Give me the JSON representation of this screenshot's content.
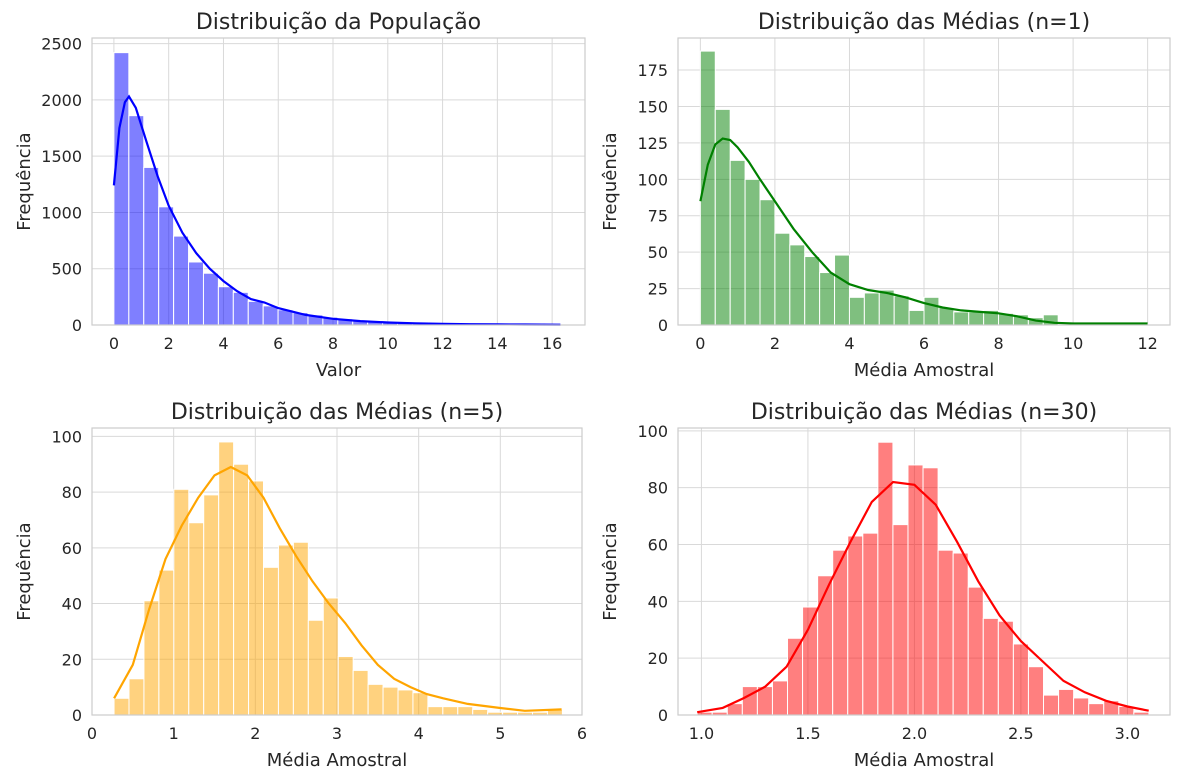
{
  "chart_data": [
    {
      "type": "bar",
      "title": "Distribuição da População",
      "xlabel": "Valor",
      "ylabel": "Frequência",
      "xlim": [
        -0.8,
        17.2
      ],
      "ylim": [
        0,
        2550
      ],
      "xticks": [
        0,
        2,
        4,
        6,
        8,
        10,
        12,
        14,
        16
      ],
      "xtick_labels": [
        "0",
        "2",
        "4",
        "6",
        "8",
        "10",
        "12",
        "14",
        "16"
      ],
      "yticks": [
        0,
        500,
        1000,
        1500,
        2000,
        2500
      ],
      "ytick_labels": [
        "0",
        "500",
        "1000",
        "1500",
        "2000",
        "2500"
      ],
      "grid": true,
      "color": "#0000ff",
      "bin_start": 0.0,
      "bin_width": 0.545,
      "values": [
        2420,
        1860,
        1400,
        1050,
        790,
        560,
        460,
        340,
        290,
        210,
        170,
        135,
        110,
        90,
        70,
        55,
        42,
        32,
        26,
        20,
        16,
        12,
        10,
        8,
        6,
        5,
        4,
        3,
        2,
        2
      ],
      "kde": {
        "x": [
          0,
          0.2,
          0.4,
          0.55,
          0.8,
          1.2,
          1.6,
          2.0,
          2.5,
          3.0,
          3.5,
          4.0,
          4.5,
          5.0,
          5.5,
          6.0,
          7.0,
          8.0,
          9.0,
          10.0,
          11.0,
          12.0,
          13.0,
          14.0,
          15.0,
          16.3
        ],
        "y": [
          1240,
          1750,
          1980,
          2030,
          1930,
          1620,
          1320,
          1060,
          820,
          640,
          500,
          390,
          300,
          230,
          200,
          150,
          90,
          55,
          35,
          22,
          15,
          10,
          7,
          5,
          4,
          3
        ]
      }
    },
    {
      "type": "bar",
      "title": "Distribuição das Médias (n=1)",
      "xlabel": "Média Amostral",
      "ylabel": "Frequência",
      "xlim": [
        -0.6,
        12.6
      ],
      "ylim": [
        0,
        197
      ],
      "xticks": [
        0,
        2,
        4,
        6,
        8,
        10,
        12
      ],
      "xtick_labels": [
        "0",
        "2",
        "4",
        "6",
        "8",
        "10",
        "12"
      ],
      "yticks": [
        0,
        25,
        50,
        75,
        100,
        125,
        150,
        175
      ],
      "ytick_labels": [
        "0",
        "25",
        "50",
        "75",
        "100",
        "125",
        "150",
        "175"
      ],
      "grid": true,
      "color": "#008000",
      "bin_start": 0.0,
      "bin_width": 0.4,
      "values": [
        188,
        148,
        113,
        100,
        86,
        63,
        55,
        47,
        36,
        48,
        19,
        22,
        24,
        20,
        10,
        19,
        12,
        9,
        9,
        10,
        8,
        7,
        5,
        7,
        0,
        0,
        0,
        0,
        1,
        1
      ],
      "kde": {
        "x": [
          0,
          0.2,
          0.4,
          0.6,
          0.8,
          1.0,
          1.3,
          1.6,
          2.0,
          2.5,
          3.0,
          3.5,
          4.0,
          4.5,
          5.0,
          5.5,
          6.0,
          6.5,
          7.0,
          7.5,
          8.0,
          8.5,
          9.0,
          9.5,
          10.0,
          11.0,
          12.0
        ],
        "y": [
          85,
          110,
          124,
          128,
          127,
          122,
          112,
          100,
          85,
          66,
          50,
          36,
          28,
          24,
          22,
          19,
          15,
          12,
          10,
          9,
          8,
          6,
          3,
          1.5,
          1,
          1,
          1
        ]
      }
    },
    {
      "type": "bar",
      "title": "Distribuição das Médias (n=5)",
      "xlabel": "Média Amostral",
      "ylabel": "Frequência",
      "xlim": [
        0,
        6
      ],
      "ylim": [
        0,
        103
      ],
      "xticks": [
        0,
        1,
        2,
        3,
        4,
        5,
        6
      ],
      "xtick_labels": [
        "0",
        "1",
        "2",
        "3",
        "4",
        "5",
        "6"
      ],
      "yticks": [
        0,
        20,
        40,
        60,
        80,
        100
      ],
      "ytick_labels": [
        "0",
        "20",
        "40",
        "60",
        "80",
        "100"
      ],
      "grid": true,
      "color": "#ffa500",
      "bin_start": 0.27,
      "bin_width": 0.183,
      "values": [
        6,
        13,
        41,
        52,
        81,
        69,
        79,
        98,
        90,
        84,
        53,
        61,
        62,
        34,
        42,
        21,
        16,
        11,
        10,
        9,
        8,
        3,
        3,
        3,
        2,
        1,
        1,
        1,
        1,
        2
      ],
      "kde": {
        "x": [
          0.27,
          0.5,
          0.7,
          0.9,
          1.1,
          1.3,
          1.5,
          1.7,
          1.9,
          2.1,
          2.3,
          2.5,
          2.7,
          2.9,
          3.1,
          3.3,
          3.5,
          3.7,
          3.9,
          4.1,
          4.3,
          4.6,
          5.0,
          5.3,
          5.75
        ],
        "y": [
          6,
          18,
          38,
          56,
          68,
          78,
          86,
          89,
          86,
          78,
          67,
          57,
          48,
          40,
          33,
          25,
          18,
          13,
          10,
          7.5,
          6,
          4,
          2.5,
          1.5,
          2
        ]
      }
    },
    {
      "type": "bar",
      "title": "Distribuição das Médias (n=30)",
      "xlabel": "Média Amostral",
      "ylabel": "Frequência",
      "xlim": [
        0.89,
        3.2
      ],
      "ylim": [
        0,
        101
      ],
      "xticks": [
        1.0,
        1.5,
        2.0,
        2.5,
        3.0
      ],
      "xtick_labels": [
        "1.0",
        "1.5",
        "2.0",
        "2.5",
        "3.0"
      ],
      "yticks": [
        0,
        20,
        40,
        60,
        80,
        100
      ],
      "ytick_labels": [
        "0",
        "20",
        "40",
        "60",
        "80",
        "100"
      ],
      "grid": true,
      "color": "#ff0000",
      "bin_start": 0.98,
      "bin_width": 0.0707,
      "values": [
        1,
        1,
        4,
        10,
        10,
        12,
        27,
        38,
        49,
        58,
        63,
        64,
        96,
        67,
        88,
        87,
        58,
        57,
        45,
        34,
        33,
        25,
        17,
        7,
        9,
        6,
        4,
        5,
        3,
        1
      ],
      "kde": {
        "x": [
          0.98,
          1.1,
          1.2,
          1.3,
          1.4,
          1.5,
          1.6,
          1.7,
          1.8,
          1.9,
          2.0,
          2.1,
          2.2,
          2.3,
          2.4,
          2.5,
          2.6,
          2.7,
          2.8,
          2.9,
          3.0,
          3.1
        ],
        "y": [
          1,
          2.5,
          6,
          10,
          17,
          30,
          46,
          61,
          75,
          82,
          81,
          74,
          61,
          47,
          35,
          26,
          19,
          12,
          8,
          5,
          3,
          1.5
        ]
      }
    }
  ]
}
